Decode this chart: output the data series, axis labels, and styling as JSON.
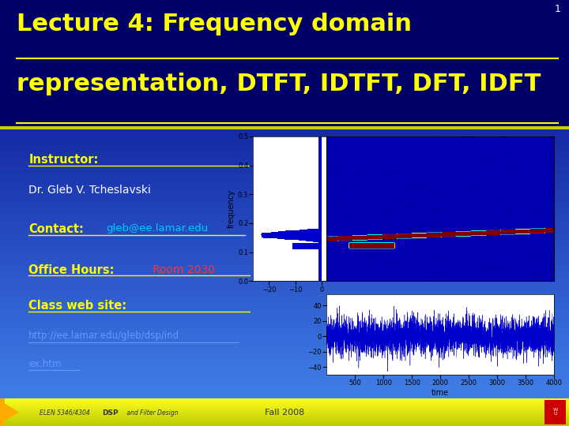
{
  "slide_bg_top": "#000080",
  "slide_bg_bottom": "#4488ee",
  "title_bg": "#000066",
  "title_text_color": "#ffff00",
  "header_line_color": "#aaaa00",
  "footer_text": "ELEN 5346/4304 DSP and Filter Design",
  "footer_center": "Fall 2008",
  "slide_number": "1",
  "instructor_name": "Dr. Gleb V. Tcheslavski",
  "contact_email": "gleb@ee.lamar.edu",
  "office_value": "Room 2030",
  "website_line1": "http://ee.lamar.edu/gleb/dsp/ind",
  "website_line2": "ex.htm",
  "label_color": "#ffff00",
  "link_color": "#00ccff",
  "office_value_color": "#ff3333",
  "website_url_color": "#6699ff",
  "text_color": "#ffffff",
  "plot_panel_bg": "#aaaaaa"
}
